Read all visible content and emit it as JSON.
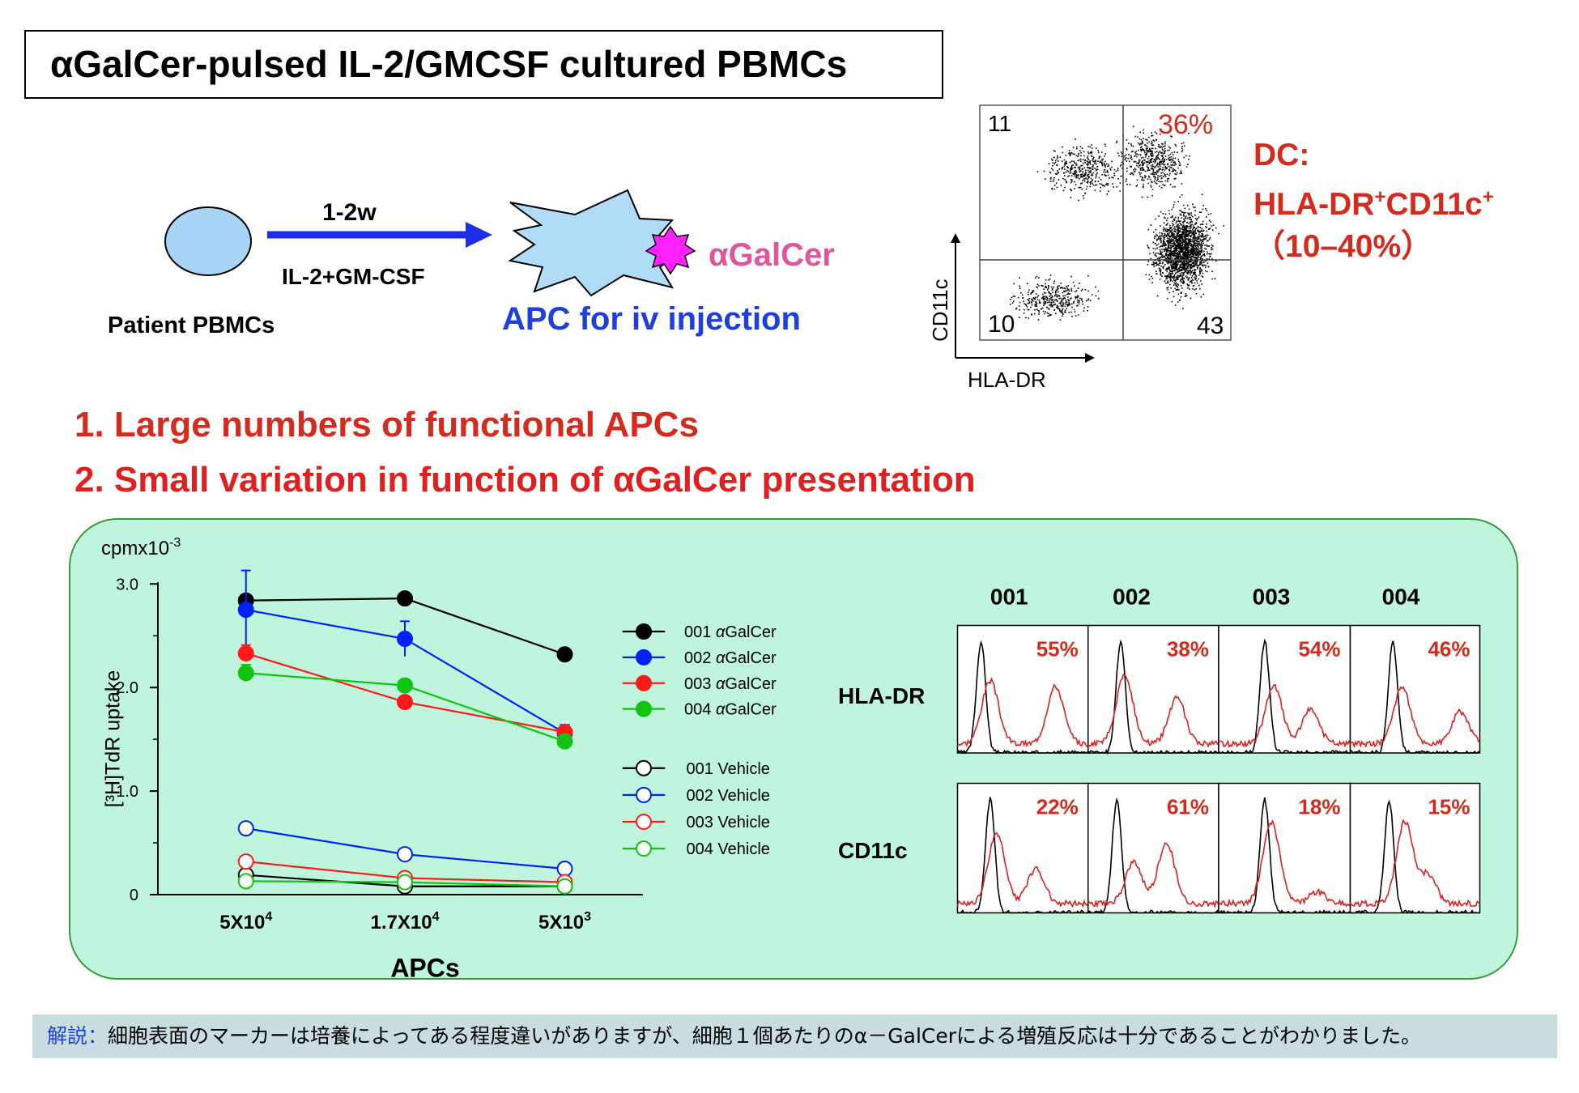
{
  "title": "αGalCer-pulsed IL-2/GMCSF cultured PBMCs",
  "scheme": {
    "duration": "1-2w",
    "culture": "IL-2+GM-CSF",
    "start_label": "Patient PBMCs",
    "ligand": "αGalCer",
    "product": "APC for iv injection",
    "colors": {
      "cell": "#a8d4f5",
      "arrow": "#1c2fe6",
      "ligand": "#ff22ff"
    }
  },
  "facs": {
    "x_label": "HLA-DR",
    "y_label": "CD11c",
    "q_upper_left": "11",
    "q_upper_right": "36%",
    "q_lower_left": "10",
    "q_lower_right": "43"
  },
  "dc": {
    "line1": "DC:",
    "line2": "HLA-DR",
    "sup1": "+",
    "line2b": "CD11c",
    "sup2": "+",
    "line3": "（10–40%）"
  },
  "points": [
    "1. Large numbers of functional APCs",
    "2. Small variation in function of αGalCer presentation"
  ],
  "chart_data": {
    "type": "line",
    "unit_label": "cpmx10",
    "unit_exp": "-3",
    "ylabel": "[³H]TdR uptake",
    "xlabel": "APCs",
    "categories": [
      "5X10⁴",
      "1.7X10⁴",
      "5X10³"
    ],
    "yticks": [
      "3.0",
      "2.0",
      "1.0",
      "0"
    ],
    "ylim": [
      0,
      3.0
    ],
    "series": [
      {
        "name": "001 αGalCer",
        "color": "#000000",
        "filled": true,
        "values": [
          2.84,
          2.86,
          2.32
        ],
        "err": [
          0.0,
          0.05,
          0.0
        ]
      },
      {
        "name": "002 αGalCer",
        "color": "#0022ff",
        "filled": true,
        "values": [
          2.75,
          2.47,
          1.56
        ],
        "err": [
          0.38,
          0.17,
          0.08
        ]
      },
      {
        "name": "003 αGalCer",
        "color": "#ff1a1a",
        "filled": true,
        "values": [
          2.33,
          1.86,
          1.57
        ],
        "err": [
          0.08,
          0.0,
          0.0
        ]
      },
      {
        "name": "004 αGalCer",
        "color": "#13c313",
        "filled": true,
        "values": [
          2.14,
          2.02,
          1.48
        ],
        "err": [
          0.08,
          0.0,
          0.0
        ]
      },
      {
        "name": "001 Vehicle",
        "color": "#000000",
        "filled": false,
        "values": [
          0.19,
          0.08,
          0.08
        ],
        "err": [
          0,
          0,
          0
        ]
      },
      {
        "name": "002 Vehicle",
        "color": "#0022ff",
        "filled": false,
        "values": [
          0.64,
          0.39,
          0.25
        ],
        "err": [
          0,
          0,
          0
        ]
      },
      {
        "name": "003 Vehicle",
        "color": "#ff1a1a",
        "filled": false,
        "values": [
          0.32,
          0.16,
          0.12
        ],
        "err": [
          0,
          0,
          0
        ]
      },
      {
        "name": "004 Vehicle",
        "color": "#13c313",
        "filled": false,
        "values": [
          0.13,
          0.12,
          0.08
        ],
        "err": [
          0,
          0,
          0
        ]
      }
    ]
  },
  "histograms": {
    "samples": [
      "001",
      "002",
      "003",
      "004"
    ],
    "rows": [
      "HLA-DR",
      "CD11c"
    ],
    "hla_dr_pct": [
      "55%",
      "38%",
      "54%",
      "46%"
    ],
    "cd11c_pct": [
      "22%",
      "61%",
      "18%",
      "15%"
    ]
  },
  "note": {
    "label": "解説：",
    "text": "細胞表面のマーカーは培養によってある程度違いがありますが、細胞１個あたりのα－GalCerによる増殖反応は十分であることがわかりました。"
  }
}
